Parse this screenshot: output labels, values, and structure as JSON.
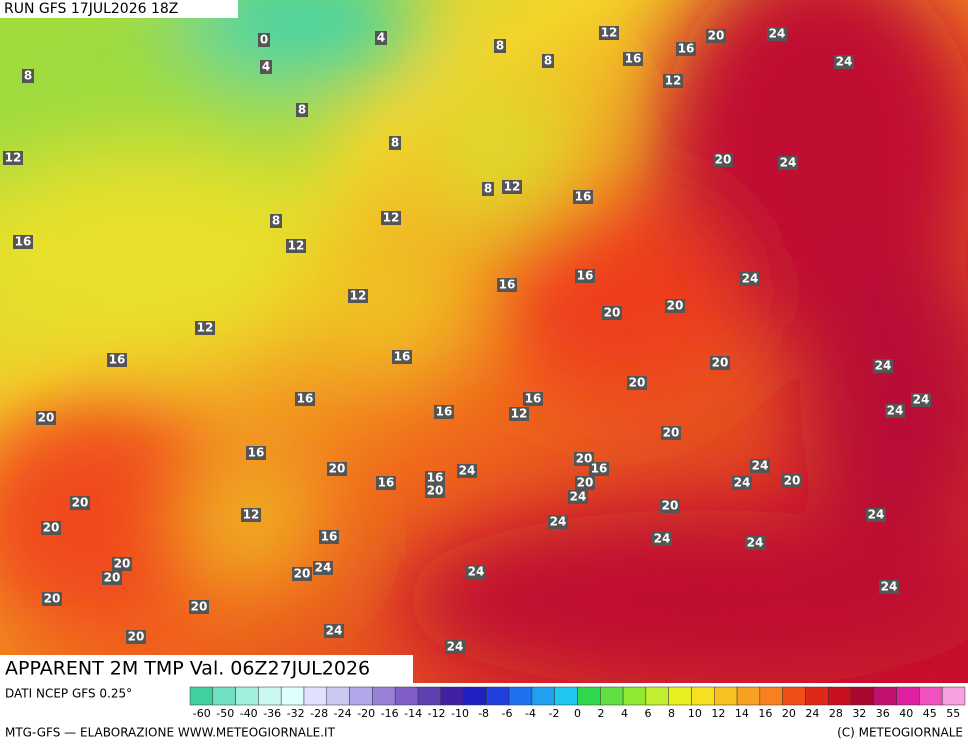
{
  "header": {
    "run": "RUN GFS 17JUL2026 18Z",
    "title": "APPARENT 2M TMP Val. 06Z27JUL2026"
  },
  "footer": {
    "source": "DATI NCEP GFS 0.25°",
    "credit": "MTG-GFS — ELABORAZIONE WWW.METEOGIORNALE.IT",
    "copyright": "(C) METEOGIORNALE"
  },
  "legend": {
    "ticks": [
      -60,
      -50,
      -40,
      -36,
      -32,
      -28,
      -24,
      -20,
      -16,
      -14,
      -12,
      -10,
      -8,
      -6,
      -4,
      -2,
      0,
      2,
      4,
      6,
      8,
      10,
      12,
      14,
      16,
      20,
      24,
      28,
      32,
      36,
      40,
      45,
      55
    ]
  },
  "map_labels": [
    4,
    0,
    4,
    8,
    8,
    8,
    8,
    12,
    16,
    16,
    20,
    24,
    24,
    12,
    8,
    12,
    8,
    12,
    16,
    20,
    24,
    8,
    12,
    16,
    12,
    12,
    16,
    16,
    20,
    20,
    24,
    12,
    16,
    16,
    20,
    24,
    16,
    16,
    12,
    16,
    20,
    24,
    24,
    20,
    20,
    16,
    20,
    24,
    16,
    16,
    20,
    20,
    16,
    24,
    24,
    20,
    20,
    24,
    20,
    12,
    24,
    20,
    24,
    20,
    16,
    24,
    24,
    20,
    20,
    20,
    24,
    24,
    24,
    20,
    20,
    20,
    24,
    24
  ]
}
